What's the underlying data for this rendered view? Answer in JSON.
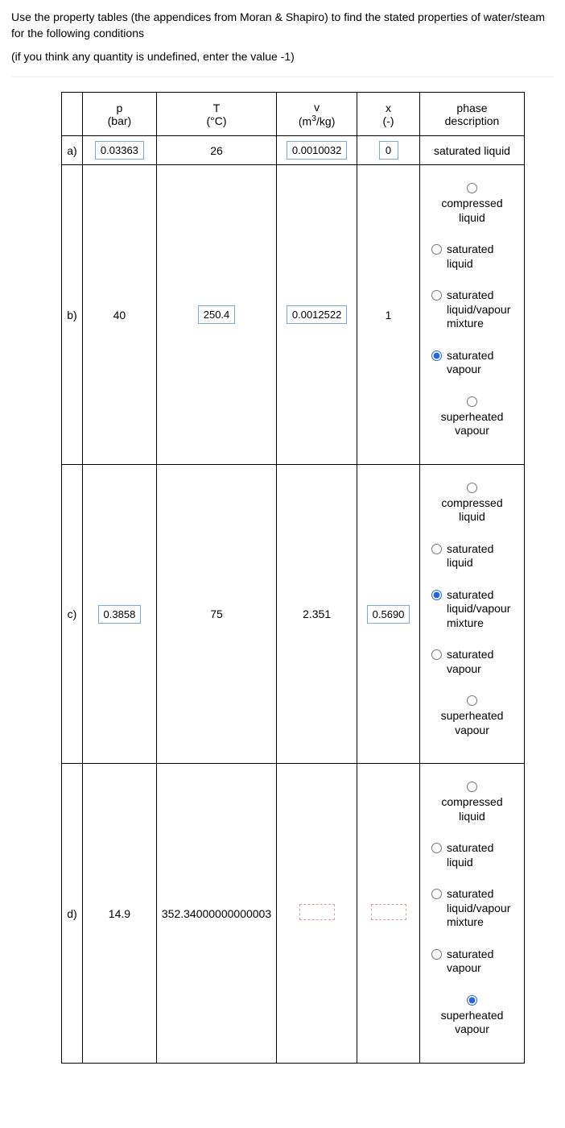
{
  "prompt": {
    "line1": "Use the property tables (the appendices from Moran & Shapiro) to find the stated properties of water/steam for the following conditions",
    "line2": "(if you think any quantity is undefined, enter the value -1)"
  },
  "headers": {
    "p_sym": "p",
    "p_unit": "(bar)",
    "T_sym": "T",
    "T_unit": "(°C)",
    "v_sym": "v",
    "v_unit_pre": "(m",
    "v_unit_sup": "3",
    "v_unit_post": "/kg)",
    "x_sym": "x",
    "x_unit": "(-)",
    "phase_top": "phase",
    "phase_bot": "description"
  },
  "phase_options": [
    "compressed liquid",
    "saturated liquid",
    "saturated liquid/vapour mixture",
    "saturated vapour",
    "superheated vapour"
  ],
  "rows": {
    "a": {
      "label": "a)",
      "p_boxed": true,
      "p": "0.03363",
      "T_boxed": false,
      "T": "26",
      "v_boxed": true,
      "v": "0.0010032",
      "x_boxed": true,
      "x": "0",
      "phase_text": "saturated liquid"
    },
    "b": {
      "label": "b)",
      "p_boxed": false,
      "p": "40",
      "T_boxed": true,
      "T": "250.4",
      "v_boxed": true,
      "v": "0.0012522",
      "x_boxed": false,
      "x": "1",
      "selected": 3
    },
    "c": {
      "label": "c)",
      "p_boxed": true,
      "p": "0.3858",
      "T_boxed": false,
      "T": "75",
      "v_boxed": false,
      "v": "2.351",
      "x_boxed": true,
      "x": "0.5690",
      "selected": 2
    },
    "d": {
      "label": "d)",
      "p_boxed": false,
      "p": "14.9",
      "T_boxed": false,
      "T": "352.34000000000003",
      "v_boxed": false,
      "v": "",
      "x_boxed": false,
      "x": "",
      "selected": 4
    }
  }
}
